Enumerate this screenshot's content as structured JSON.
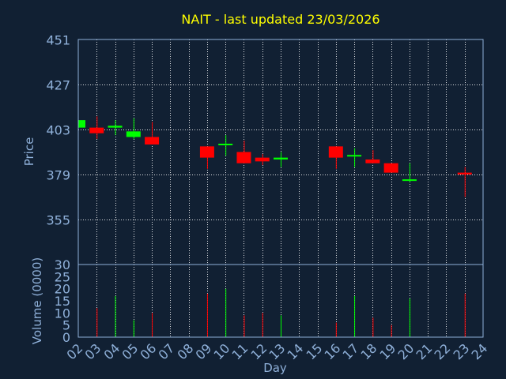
{
  "chart_data": {
    "type": "candlestick",
    "title": "NAIT - last updated 23/03/2026",
    "xlabel": "Day",
    "ylabel_price": "Price",
    "ylabel_volume": "Volume (0000)",
    "x_ticks": [
      "02",
      "03",
      "04",
      "05",
      "06",
      "07",
      "08",
      "09",
      "10",
      "11",
      "12",
      "13",
      "14",
      "15",
      "16",
      "17",
      "18",
      "19",
      "20",
      "21",
      "22",
      "23",
      "24"
    ],
    "price_ticks": [
      451,
      427,
      403,
      379,
      355
    ],
    "price_range": [
      331,
      451
    ],
    "volume_ticks": [
      30,
      25,
      20,
      15,
      10,
      5,
      0
    ],
    "volume_range": [
      0,
      30
    ],
    "grid": true,
    "colors": {
      "up": "#00ff00",
      "down": "#ff0000",
      "background": "#112033",
      "title": "#ffff00",
      "axis_text": "#8fb0d9",
      "frame": "#8fb0d9"
    },
    "candles": [
      {
        "day": "02",
        "open": 404,
        "close": 408,
        "high": 408,
        "low": 404,
        "volume": 0
      },
      {
        "day": "03",
        "open": 404,
        "close": 401,
        "high": 410,
        "low": 398,
        "volume": 12
      },
      {
        "day": "04",
        "open": 404,
        "close": 405,
        "high": 408,
        "low": 400,
        "volume": 17
      },
      {
        "day": "05",
        "open": 399,
        "close": 402,
        "high": 409,
        "low": 398,
        "volume": 7
      },
      {
        "day": "06",
        "open": 399,
        "close": 395,
        "high": 407,
        "low": 395,
        "volume": 10
      },
      {
        "day": "09",
        "open": 394,
        "close": 388,
        "high": 394,
        "low": 382,
        "volume": 18
      },
      {
        "day": "10",
        "open": 395,
        "close": 395,
        "high": 400,
        "low": 389,
        "volume": 20
      },
      {
        "day": "11",
        "open": 391,
        "close": 385,
        "high": 397,
        "low": 385,
        "volume": 9
      },
      {
        "day": "12",
        "open": 388,
        "close": 386,
        "high": 390,
        "low": 384,
        "volume": 10
      },
      {
        "day": "13",
        "open": 387,
        "close": 388,
        "high": 391,
        "low": 383,
        "volume": 9
      },
      {
        "day": "16",
        "open": 394,
        "close": 388,
        "high": 394,
        "low": 382,
        "volume": 6
      },
      {
        "day": "17",
        "open": 389,
        "close": 389,
        "high": 393,
        "low": 383,
        "volume": 17
      },
      {
        "day": "18",
        "open": 387,
        "close": 385,
        "high": 392,
        "low": 385,
        "volume": 8
      },
      {
        "day": "19",
        "open": 385,
        "close": 380,
        "high": 385,
        "low": 380,
        "volume": 5
      },
      {
        "day": "20",
        "open": 376,
        "close": 376,
        "high": 385,
        "low": 375,
        "volume": 16
      },
      {
        "day": "23",
        "open": 380,
        "close": 379,
        "high": 383,
        "low": 367,
        "volume": 18
      }
    ]
  }
}
